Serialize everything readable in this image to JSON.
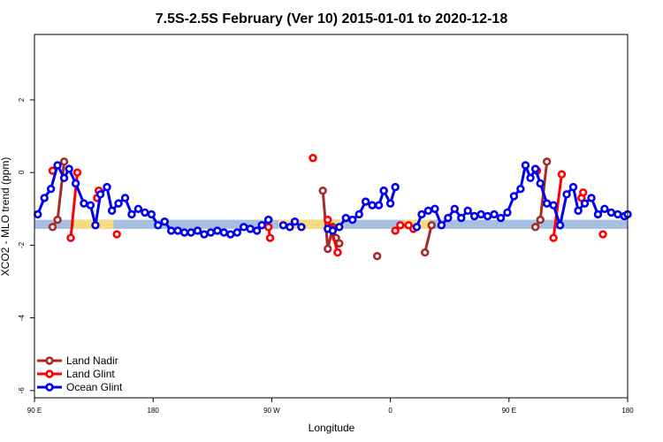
{
  "chart_data": {
    "type": "line",
    "title": "7.5S-2.5S February (Ver 10)   2015-01-01 to 2020-12-18",
    "xlabel": "Longitude",
    "ylabel": "XCO2 - MLO trend (ppm)",
    "xlim": [
      90,
      450
    ],
    "ylim": [
      -6.2,
      3.8
    ],
    "x_ticks": [
      {
        "value": 90,
        "label": "90 E"
      },
      {
        "value": 162,
        "label": "180"
      },
      {
        "value": 234,
        "label": "90 W"
      },
      {
        "value": 306,
        "label": "0"
      },
      {
        "value": 378,
        "label": "90 E"
      },
      {
        "value": 450,
        "label": "180"
      }
    ],
    "y_ticks": [
      {
        "value": 2,
        "label": "2"
      },
      {
        "value": 0,
        "label": "0"
      },
      {
        "value": -2,
        "label": "-2"
      },
      {
        "value": -4,
        "label": "-4"
      },
      {
        "value": -6,
        "label": "-6"
      }
    ],
    "grid": false,
    "legend": "bottom-left",
    "band": {
      "y_min": -1.55,
      "y_max": -1.3,
      "ocean_color": "#a7bfe0",
      "land_color": "#f6dc7f",
      "land_segments": [
        [
          114,
          138
        ],
        [
          238,
          278
        ],
        [
          314,
          330
        ],
        [
          454,
          470
        ],
        [
          500,
          512
        ]
      ]
    },
    "series": [
      {
        "name": "Land Nadir",
        "color": "#a52a2a",
        "segments": [
          {
            "x": [
              101,
              104,
              108
            ],
            "y": [
              -1.5,
              -1.3,
              0.3
            ]
          },
          {
            "x": [
              265,
              268,
              271,
              273,
              275
            ],
            "y": [
              -0.5,
              -2.1,
              -1.5,
              -1.8,
              -1.95
            ]
          },
          {
            "x": [
              298
            ],
            "y": [
              -2.3
            ]
          },
          {
            "x": [
              327,
              331
            ],
            "y": [
              -2.2,
              -1.45
            ]
          },
          {
            "x": [
              394,
              397,
              401
            ],
            "y": [
              -1.5,
              -1.3,
              0.3
            ]
          },
          {
            "x": [
              478
            ],
            "y": [
              -2.3
            ]
          }
        ]
      },
      {
        "name": "Land Glint",
        "color": "#ff0000",
        "segments": [
          {
            "x": [
              101
            ],
            "y": [
              0.05
            ]
          },
          {
            "x": [
              112,
              116
            ],
            "y": [
              -1.8,
              0.0
            ]
          },
          {
            "x": [
              128,
              129
            ],
            "y": [
              -0.7,
              -0.5
            ]
          },
          {
            "x": [
              140
            ],
            "y": [
              -1.7
            ]
          },
          {
            "x": [
              232,
              233
            ],
            "y": [
              -1.5,
              -1.8
            ]
          },
          {
            "x": [
              259
            ],
            "y": [
              0.4
            ]
          },
          {
            "x": [
              268,
              270,
              274
            ],
            "y": [
              -1.3,
              -1.55,
              -2.2
            ]
          },
          {
            "x": [
              309,
              312,
              317,
              320
            ],
            "y": [
              -1.6,
              -1.45,
              -1.45,
              -1.55
            ]
          },
          {
            "x": [
              395
            ],
            "y": [
              0.05
            ]
          },
          {
            "x": [
              405,
              410
            ],
            "y": [
              -1.8,
              -0.05
            ]
          },
          {
            "x": [
              422,
              423
            ],
            "y": [
              -0.7,
              -0.55
            ]
          },
          {
            "x": [
              435
            ],
            "y": [
              -1.7
            ]
          }
        ]
      },
      {
        "name": "Ocean Glint",
        "color": "#0000ee",
        "segments": [
          {
            "x": [
              92,
              96,
              100,
              104,
              108,
              111,
              115,
              120,
              124,
              127,
              130,
              134,
              137,
              141,
              145,
              149,
              153,
              157,
              161,
              165,
              169,
              173,
              177,
              181,
              185,
              189,
              193,
              197,
              201,
              205,
              209,
              213,
              217,
              221,
              225,
              228,
              232
            ],
            "y": [
              -1.15,
              -0.7,
              -0.45,
              0.2,
              -0.15,
              0.1,
              -0.3,
              -0.85,
              -0.9,
              -1.45,
              -0.6,
              -0.4,
              -1.05,
              -0.85,
              -0.7,
              -1.15,
              -1.0,
              -1.1,
              -1.15,
              -1.45,
              -1.35,
              -1.6,
              -1.6,
              -1.65,
              -1.65,
              -1.6,
              -1.7,
              -1.65,
              -1.6,
              -1.65,
              -1.7,
              -1.65,
              -1.5,
              -1.55,
              -1.6,
              -1.45,
              -1.3
            ]
          },
          {
            "x": [
              232
            ],
            "y": [
              -1.3
            ]
          },
          {
            "x": [
              241,
              245,
              248,
              252
            ],
            "y": [
              -1.45,
              -1.5,
              -1.35,
              -1.5
            ]
          },
          {
            "x": [
              268,
              271,
              275,
              279,
              283,
              287,
              291,
              295,
              299,
              302
            ],
            "y": [
              -1.55,
              -1.6,
              -1.5,
              -1.25,
              -1.3,
              -1.15,
              -0.8,
              -0.9,
              -0.9,
              -0.5
            ]
          },
          {
            "x": [
              302,
              306,
              309
            ],
            "y": [
              -0.5,
              -0.85,
              -0.4
            ]
          },
          {
            "x": [
              322,
              325,
              329,
              333,
              337,
              341,
              345,
              349,
              353,
              357,
              361,
              365,
              369,
              373,
              377,
              381,
              385,
              388,
              391,
              394,
              397,
              401,
              405,
              409,
              413,
              417,
              420
            ],
            "y": [
              -1.5,
              -1.15,
              -1.05,
              -1.0,
              -1.45,
              -1.25,
              -1.0,
              -1.25,
              -1.05,
              -1.2,
              -1.15,
              -1.2,
              -1.15,
              -1.25,
              -1.1,
              -0.65,
              -0.45,
              0.2,
              -0.15,
              0.1,
              -0.3,
              -0.85,
              -0.9,
              -1.45,
              -0.6,
              -0.4,
              -1.05
            ]
          },
          {
            "x": [
              420,
              424,
              428,
              432,
              436,
              440,
              444,
              448,
              450
            ],
            "y": [
              -1.05,
              -0.85,
              -0.7,
              -1.15,
              -1.0,
              -1.1,
              -1.15,
              -1.2,
              -1.15
            ]
          }
        ]
      }
    ]
  }
}
